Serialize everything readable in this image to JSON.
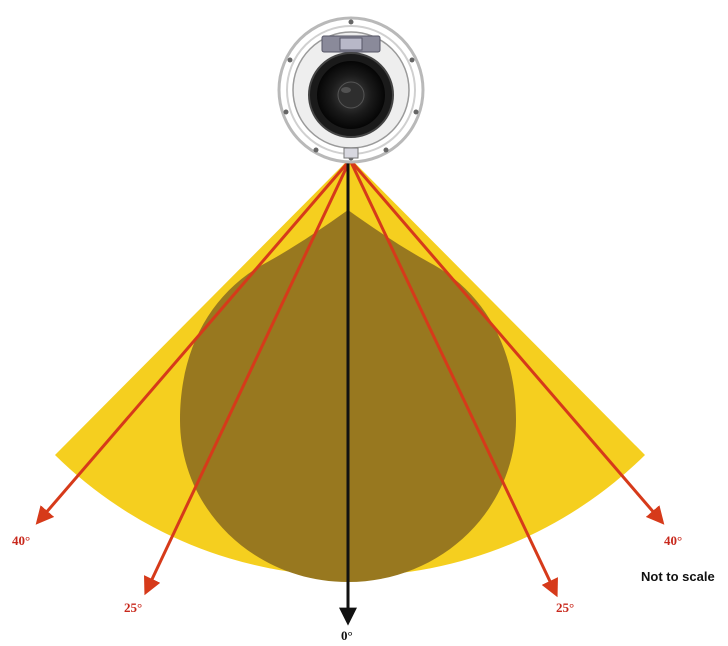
{
  "angles": {
    "left_40": "40°",
    "left_25": "25°",
    "center_0": "0°",
    "right_25": "25°",
    "right_40": "40°"
  },
  "note": "Not to scale",
  "colors": {
    "wide_coverage": "#f5cf1f",
    "narrow_coverage": "#98781f",
    "arrow_red": "#d63a1a",
    "arrow_black": "#111111"
  },
  "icons": {
    "speaker": "ceiling-speaker-icon"
  }
}
